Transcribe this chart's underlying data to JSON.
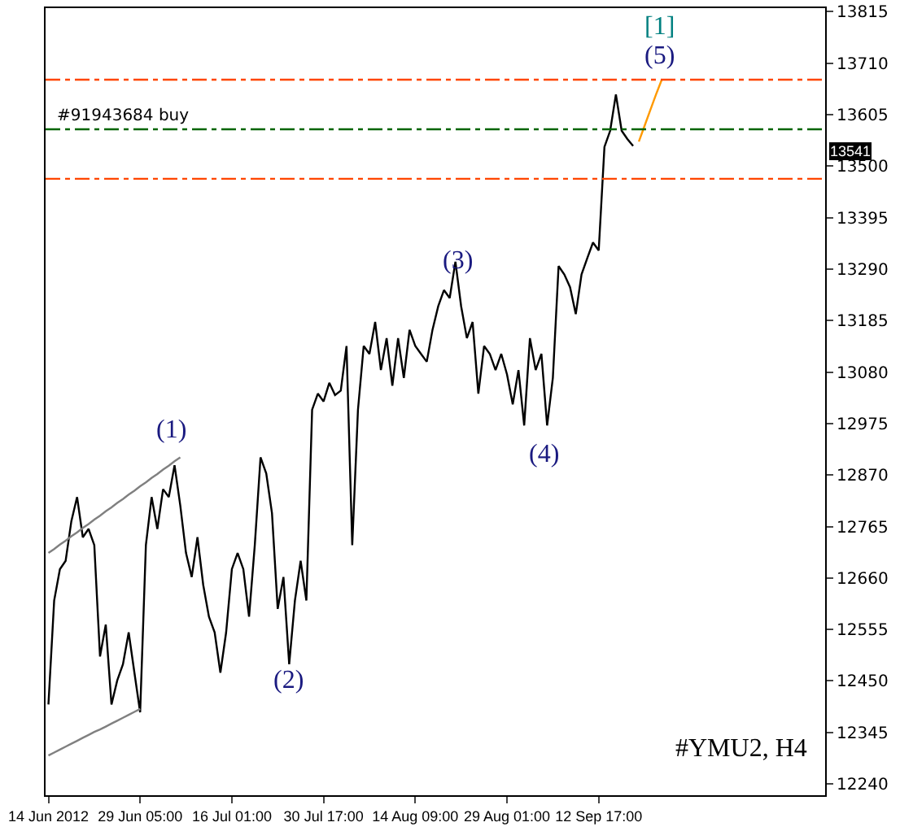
{
  "chart_data": {
    "type": "line",
    "categories": [
      "14 Jun 2012",
      null,
      null,
      null,
      null,
      null,
      null,
      null,
      null,
      null,
      null,
      null,
      null,
      null,
      null,
      null,
      "29 Jun 05:00",
      null,
      null,
      null,
      null,
      null,
      null,
      null,
      null,
      null,
      null,
      null,
      null,
      null,
      null,
      null,
      "16 Jul 01:00",
      null,
      null,
      null,
      null,
      null,
      null,
      null,
      null,
      null,
      null,
      null,
      null,
      null,
      null,
      null,
      "30 Jul 17:00",
      null,
      null,
      null,
      null,
      null,
      null,
      null,
      null,
      null,
      null,
      null,
      null,
      null,
      null,
      null,
      "14 Aug 09:00",
      null,
      null,
      null,
      null,
      null,
      null,
      null,
      null,
      null,
      null,
      null,
      null,
      null,
      null,
      null,
      "29 Aug 01:00",
      null,
      null,
      null,
      null,
      null,
      null,
      null,
      null,
      null,
      null,
      null,
      null,
      null,
      null,
      null,
      "12 Sep 17:00",
      null,
      null,
      null,
      null,
      null,
      null,
      null,
      null,
      null,
      null,
      null,
      null,
      null,
      null,
      null,
      null,
      null,
      null,
      null,
      null,
      null,
      null,
      null,
      null,
      null,
      null,
      null,
      null,
      null,
      null,
      null,
      null,
      null,
      null,
      null,
      null,
      null,
      null,
      null
    ],
    "series": [
      {
        "color": "#000000",
        "values": [
          12402,
          12614,
          12678,
          12695,
          12776,
          12825,
          12743,
          12760,
          12727,
          12500,
          12565,
          12402,
          12451,
          12484,
          12549,
          12467,
          12386,
          12727,
          12825,
          12760,
          12841,
          12825,
          12890,
          12808,
          12711,
          12662,
          12743,
          12646,
          12581,
          12549,
          12467,
          12549,
          12678,
          12711,
          12678,
          12581,
          12727,
          12906,
          12873,
          12792,
          12597,
          12662,
          12484,
          12614,
          12695,
          12614,
          13003,
          13036,
          13020,
          13058,
          13033,
          13042,
          13133,
          12727,
          13003,
          13133,
          13117,
          13182,
          13084,
          13149,
          13052,
          13149,
          13068,
          13166,
          13133,
          13117,
          13101,
          13166,
          13214,
          13247,
          13231,
          13305,
          13214,
          13149,
          13182,
          13036,
          13133,
          13117,
          13084,
          13117,
          13075,
          13014,
          13084,
          12971,
          13149,
          13084,
          13117,
          12971,
          13068,
          13296,
          13279,
          13253,
          13198,
          13279,
          13312,
          13344,
          13328,
          13539,
          13572,
          13646,
          13572,
          13555,
          13541,
          null,
          null,
          null,
          null,
          null,
          null,
          null,
          null,
          null,
          null,
          null,
          null,
          null,
          null,
          null,
          null,
          null,
          null,
          null,
          null,
          null,
          null,
          null,
          null,
          null,
          null,
          null,
          null,
          null,
          null,
          null,
          null,
          null
        ]
      },
      {
        "color": "#808080",
        "values": [
          12711,
          12719,
          12728,
          12736,
          12745,
          12753,
          12762,
          12770,
          12779,
          12787,
          12796,
          12804,
          12813,
          12821,
          12830,
          12838,
          12847,
          12855,
          12864,
          12872,
          12881,
          12889,
          12898,
          12906,
          null,
          null,
          null,
          null,
          null,
          null,
          null,
          null,
          null,
          null,
          null,
          null,
          null,
          null,
          null,
          null,
          null,
          null,
          null,
          null,
          null,
          null,
          null,
          null,
          null,
          null,
          null,
          null,
          null,
          null,
          null,
          null,
          null,
          null,
          null,
          null,
          null,
          null,
          null,
          null,
          null,
          null,
          null,
          null,
          null,
          null,
          null,
          null,
          null,
          null,
          null,
          null,
          null,
          null,
          null,
          null,
          null,
          null,
          null,
          null,
          null,
          null,
          null,
          null,
          null,
          null,
          null,
          null,
          null,
          null,
          null,
          null,
          null,
          null,
          null,
          null,
          null,
          null,
          null,
          null,
          null,
          null,
          null,
          null,
          null,
          null,
          null,
          null,
          null,
          null,
          null,
          null,
          null,
          null,
          null,
          null,
          null,
          null,
          null,
          null,
          null,
          null,
          null,
          null,
          null,
          null,
          null,
          null,
          null,
          null,
          null,
          null
        ]
      },
      {
        "color": "#808080",
        "values": [
          12298,
          12304,
          12310,
          12316,
          12322,
          12328,
          12334,
          12340,
          12346,
          12351,
          12357,
          12363,
          12369,
          12375,
          12381,
          12387,
          12393,
          null,
          null,
          null,
          null,
          null,
          null,
          null,
          null,
          null,
          null,
          null,
          null,
          null,
          null,
          null,
          null,
          null,
          null,
          null,
          null,
          null,
          null,
          null,
          null,
          null,
          null,
          null,
          null,
          null,
          null,
          null,
          null,
          null,
          null,
          null,
          null,
          null,
          null,
          null,
          null,
          null,
          null,
          null,
          null,
          null,
          null,
          null,
          null,
          null,
          null,
          null,
          null,
          null,
          null,
          null,
          null,
          null,
          null,
          null,
          null,
          null,
          null,
          null,
          null,
          null,
          null,
          null,
          null,
          null,
          null,
          null,
          null,
          null,
          null,
          null,
          null,
          null,
          null,
          null,
          null,
          null,
          null,
          null,
          null,
          null,
          null,
          null,
          null,
          null,
          null,
          null,
          null,
          null,
          null,
          null,
          null,
          null,
          null,
          null,
          null,
          null,
          null,
          null,
          null,
          null,
          null,
          null,
          null,
          null,
          null,
          null,
          null,
          null,
          null,
          null,
          null,
          null,
          null,
          null
        ]
      },
      {
        "color": "#ff9900",
        "values": [
          null,
          null,
          null,
          null,
          null,
          null,
          null,
          null,
          null,
          null,
          null,
          null,
          null,
          null,
          null,
          null,
          null,
          null,
          null,
          null,
          null,
          null,
          null,
          null,
          null,
          null,
          null,
          null,
          null,
          null,
          null,
          null,
          null,
          null,
          null,
          null,
          null,
          null,
          null,
          null,
          null,
          null,
          null,
          null,
          null,
          null,
          null,
          null,
          null,
          null,
          null,
          null,
          null,
          null,
          null,
          null,
          null,
          null,
          null,
          null,
          null,
          null,
          null,
          null,
          null,
          null,
          null,
          null,
          null,
          null,
          null,
          null,
          null,
          null,
          null,
          null,
          null,
          null,
          null,
          null,
          null,
          null,
          null,
          null,
          null,
          null,
          null,
          null,
          null,
          null,
          null,
          null,
          null,
          null,
          null,
          null,
          null,
          null,
          null,
          null,
          null,
          null,
          null,
          13550,
          13582,
          13614,
          13646,
          13676,
          null,
          null,
          null,
          null,
          null,
          null,
          null,
          null,
          null,
          null,
          null,
          null,
          null,
          null,
          null,
          null,
          null,
          null,
          null,
          null,
          null,
          null,
          null,
          null,
          null,
          null,
          null,
          null
        ]
      }
    ],
    "ylim": [
      12217,
      13822
    ],
    "yticks": [
      12240,
      12345,
      12450,
      12555,
      12660,
      12765,
      12870,
      12975,
      13080,
      13185,
      13290,
      13395,
      13500,
      13605,
      13710,
      13815
    ],
    "ref_lines": [
      {
        "axis": "y",
        "value": 13676,
        "color": "#ff4500",
        "line_style": "dashed"
      },
      {
        "axis": "y",
        "value": 13575,
        "color": "#006400",
        "line_style": "dashed",
        "label": "#91943684 buy"
      },
      {
        "axis": "y",
        "value": 13474,
        "color": "#ff4500",
        "line_style": "dashed"
      }
    ],
    "annotations": [
      "(1)",
      "(2)",
      "(3)",
      "(4)",
      "(5)",
      "[1]",
      "13541",
      "#YMU2, H4"
    ],
    "marker": "none",
    "line_style": "solid"
  }
}
